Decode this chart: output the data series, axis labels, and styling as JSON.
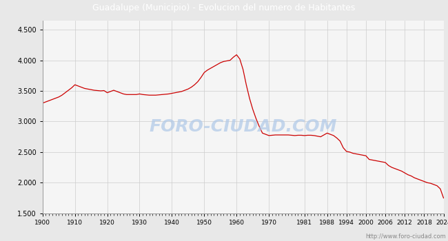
{
  "title": "Guadalupe (Municipio) - Evolucion del numero de Habitantes",
  "title_bg_color": "#4f8fd6",
  "title_text_color": "#ffffff",
  "line_color": "#cc0000",
  "bg_color": "#e8e8e8",
  "plot_bg_color": "#f5f5f5",
  "grid_color": "#cccccc",
  "watermark_text": "FORO-CIUDAD.COM",
  "watermark_color": "#aec8e8",
  "url_text": "http://www.foro-ciudad.com",
  "ylim": [
    1500,
    4650
  ],
  "yticks": [
    1500,
    2000,
    2500,
    3000,
    3500,
    4000,
    4500
  ],
  "ytick_labels": [
    "1.500",
    "2.000",
    "2.500",
    "3.000",
    "3.500",
    "4.000",
    "4.500"
  ],
  "xtick_labels": [
    "1900",
    "1910",
    "1920",
    "1930",
    "1940",
    "1950",
    "1960",
    "1970",
    "1981",
    "1988",
    "1994",
    "2000",
    "2006",
    "2012",
    "2018",
    "2024"
  ],
  "years": [
    1900,
    1901,
    1902,
    1903,
    1904,
    1905,
    1906,
    1907,
    1908,
    1909,
    1910,
    1911,
    1912,
    1913,
    1914,
    1915,
    1916,
    1917,
    1918,
    1919,
    1920,
    1921,
    1922,
    1923,
    1924,
    1925,
    1926,
    1927,
    1928,
    1929,
    1930,
    1931,
    1932,
    1933,
    1934,
    1935,
    1936,
    1937,
    1938,
    1939,
    1940,
    1941,
    1942,
    1943,
    1944,
    1945,
    1946,
    1947,
    1948,
    1949,
    1950,
    1951,
    1952,
    1953,
    1954,
    1955,
    1956,
    1957,
    1958,
    1959,
    1960,
    1961,
    1962,
    1963,
    1964,
    1965,
    1966,
    1967,
    1968,
    1969,
    1970,
    1971,
    1972,
    1973,
    1974,
    1975,
    1976,
    1977,
    1978,
    1979,
    1980,
    1981,
    1982,
    1983,
    1984,
    1985,
    1986,
    1987,
    1988,
    1989,
    1990,
    1991,
    1992,
    1993,
    1994,
    1995,
    1996,
    1997,
    1998,
    1999,
    2000,
    2001,
    2002,
    2003,
    2004,
    2005,
    2006,
    2007,
    2008,
    2009,
    2010,
    2011,
    2012,
    2013,
    2014,
    2015,
    2016,
    2017,
    2018,
    2019,
    2020,
    2021,
    2022,
    2023,
    2024
  ],
  "population": [
    3300,
    3320,
    3340,
    3360,
    3380,
    3400,
    3430,
    3470,
    3510,
    3550,
    3600,
    3580,
    3560,
    3540,
    3530,
    3520,
    3510,
    3505,
    3500,
    3505,
    3470,
    3490,
    3510,
    3490,
    3470,
    3450,
    3440,
    3440,
    3440,
    3440,
    3450,
    3440,
    3435,
    3430,
    3430,
    3430,
    3435,
    3440,
    3445,
    3450,
    3460,
    3470,
    3480,
    3490,
    3510,
    3530,
    3560,
    3600,
    3650,
    3720,
    3800,
    3840,
    3870,
    3900,
    3930,
    3960,
    3980,
    3990,
    4000,
    4050,
    4090,
    4020,
    3850,
    3600,
    3380,
    3200,
    3050,
    2920,
    2810,
    2790,
    2770,
    2775,
    2780,
    2780,
    2780,
    2780,
    2780,
    2775,
    2770,
    2775,
    2775,
    2770,
    2775,
    2775,
    2770,
    2760,
    2750,
    2780,
    2810,
    2790,
    2770,
    2730,
    2680,
    2570,
    2510,
    2500,
    2480,
    2470,
    2460,
    2450,
    2440,
    2380,
    2370,
    2360,
    2350,
    2340,
    2330,
    2280,
    2250,
    2230,
    2210,
    2190,
    2160,
    2130,
    2110,
    2080,
    2060,
    2040,
    2020,
    2000,
    1990,
    1970,
    1950,
    1900,
    1750
  ]
}
